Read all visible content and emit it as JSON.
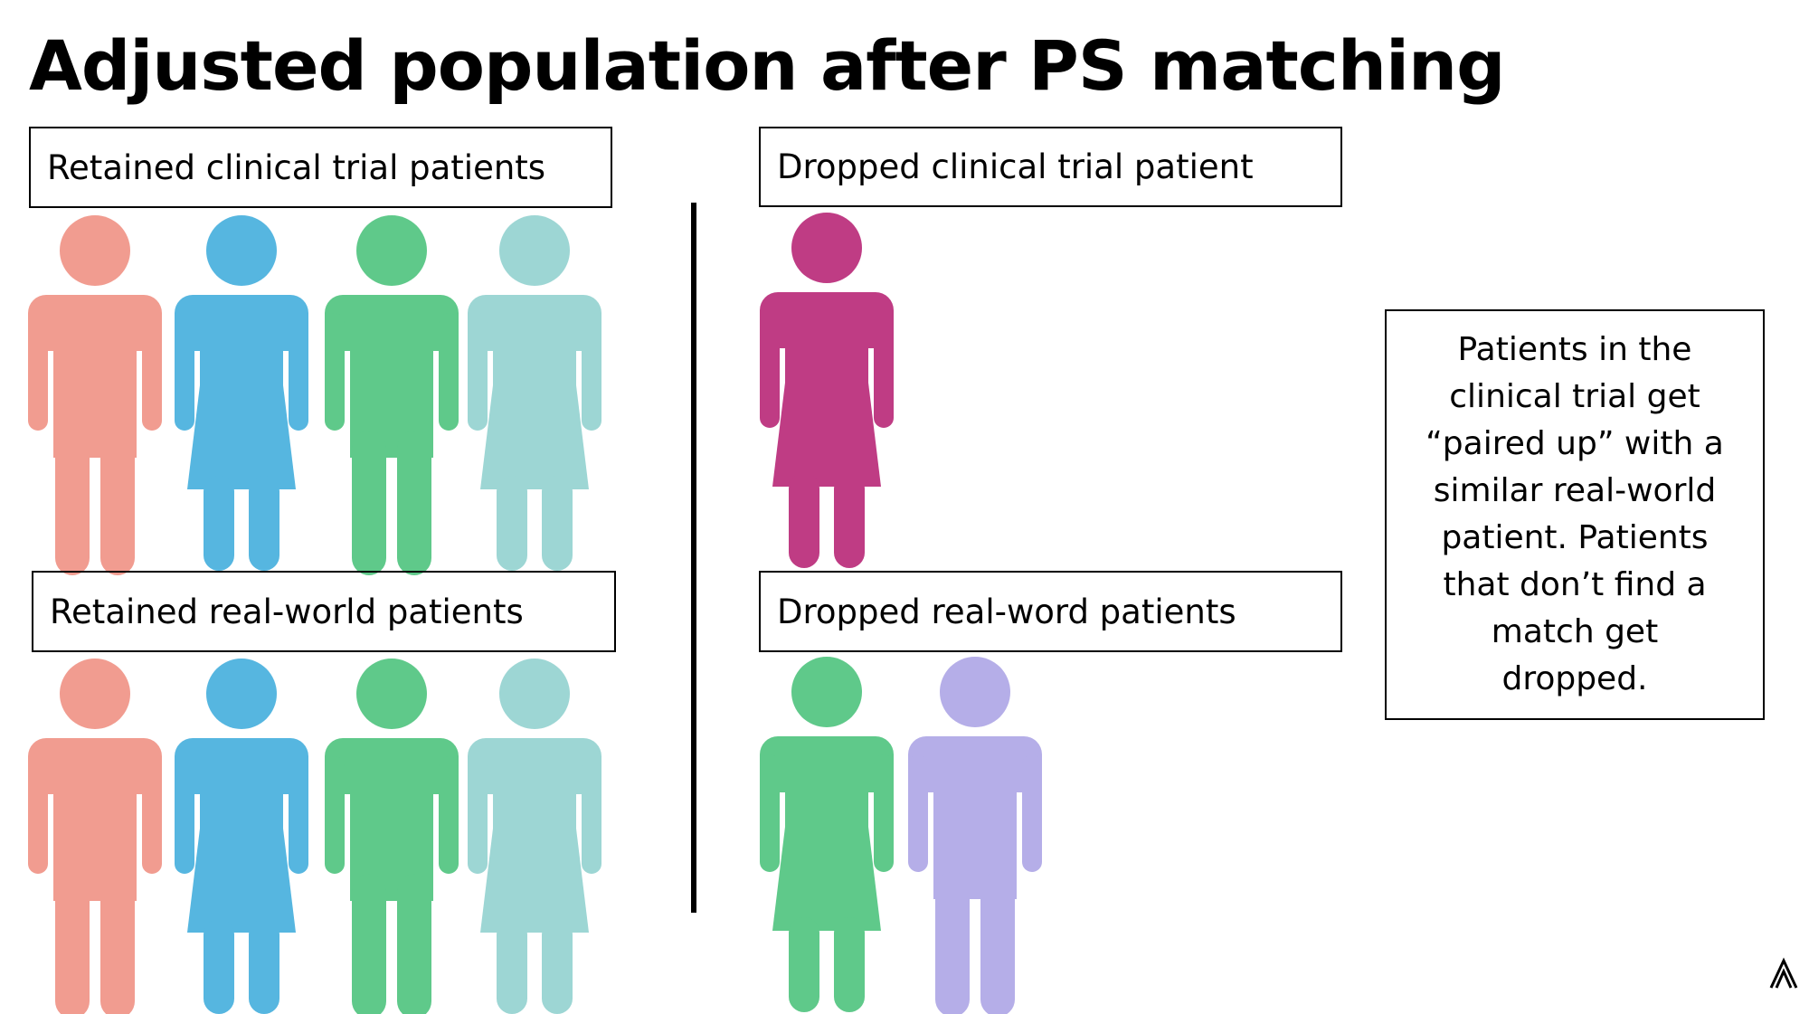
{
  "header": {
    "title": "Adjusted population after PS matching"
  },
  "groups": [
    {
      "label": "Retained clinical trial patients"
    },
    {
      "label": "Dropped clinical trial patient"
    },
    {
      "label": "Retained real-world patients"
    },
    {
      "label": "Dropped real-word patients"
    }
  ],
  "note": {
    "lines": [
      "Patients in the",
      "clinical trial get",
      "“paired up” with a",
      "similar real-world",
      "patient. Patients",
      "that don’t find a",
      "match get",
      "dropped."
    ]
  }
}
